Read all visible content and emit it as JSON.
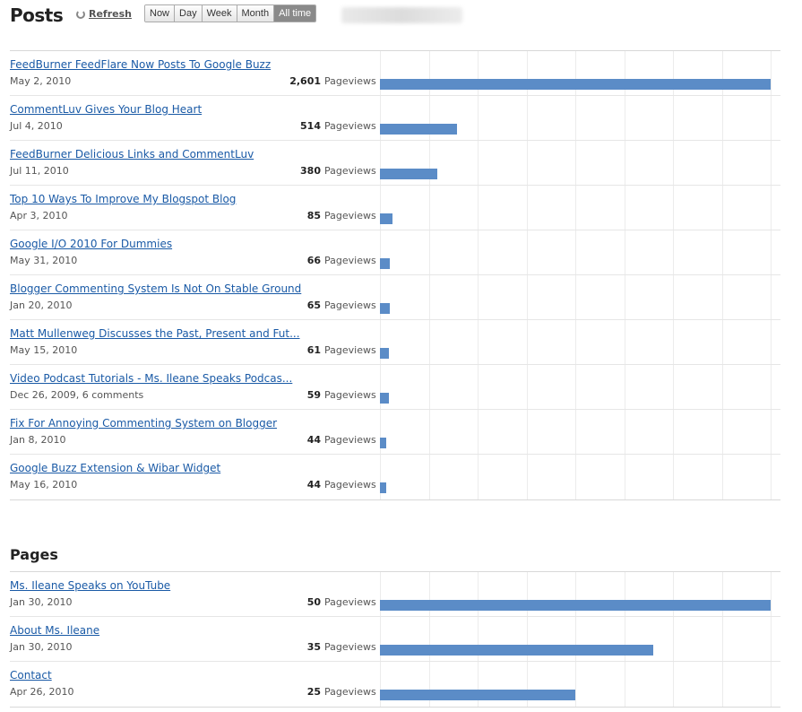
{
  "header": {
    "title": "Posts",
    "refresh_label": "Refresh",
    "ranges": [
      "Now",
      "Day",
      "Week",
      "Month",
      "All time"
    ],
    "active_range": "All time"
  },
  "colors": {
    "bar": "#5b8cc7",
    "link": "#1a5aa6"
  },
  "unit_label": "Pageviews",
  "posts": [
    {
      "title": "FeedBurner FeedFlare Now Posts To Google Buzz",
      "date": "May 2, 2010",
      "count": "2,601",
      "value": 2601
    },
    {
      "title": "CommentLuv Gives Your Blog Heart",
      "date": "Jul 4, 2010",
      "count": "514",
      "value": 514
    },
    {
      "title": "FeedBurner Delicious Links and CommentLuv",
      "date": "Jul 11, 2010",
      "count": "380",
      "value": 380
    },
    {
      "title": "Top 10 Ways To Improve My Blogspot Blog",
      "date": "Apr 3, 2010",
      "count": "85",
      "value": 85
    },
    {
      "title": "Google I/O 2010 For Dummies",
      "date": "May 31, 2010",
      "count": "66",
      "value": 66
    },
    {
      "title": "Blogger Commenting System Is Not On Stable Ground",
      "date": "Jan 20, 2010",
      "count": "65",
      "value": 65
    },
    {
      "title": "Matt Mullenweg Discusses the Past, Present and Fut...",
      "date": "May 15, 2010",
      "count": "61",
      "value": 61
    },
    {
      "title": "Video Podcast Tutorials - Ms. Ileane Speaks Podcas...",
      "date": "Dec 26, 2009, 6 comments",
      "count": "59",
      "value": 59
    },
    {
      "title": "Fix For Annoying Commenting System on Blogger",
      "date": "Jan 8, 2010",
      "count": "44",
      "value": 44
    },
    {
      "title": "Google Buzz Extension & Wibar Widget",
      "date": "May 16, 2010",
      "count": "44",
      "value": 44
    }
  ],
  "pages_title": "Pages",
  "pages": [
    {
      "title": "Ms. Ileane Speaks on YouTube",
      "date": "Jan 30, 2010",
      "count": "50",
      "value": 50
    },
    {
      "title": "About Ms. Ileane",
      "date": "Jan 30, 2010",
      "count": "35",
      "value": 35
    },
    {
      "title": "Contact",
      "date": "Apr 26, 2010",
      "count": "25",
      "value": 25
    }
  ]
}
